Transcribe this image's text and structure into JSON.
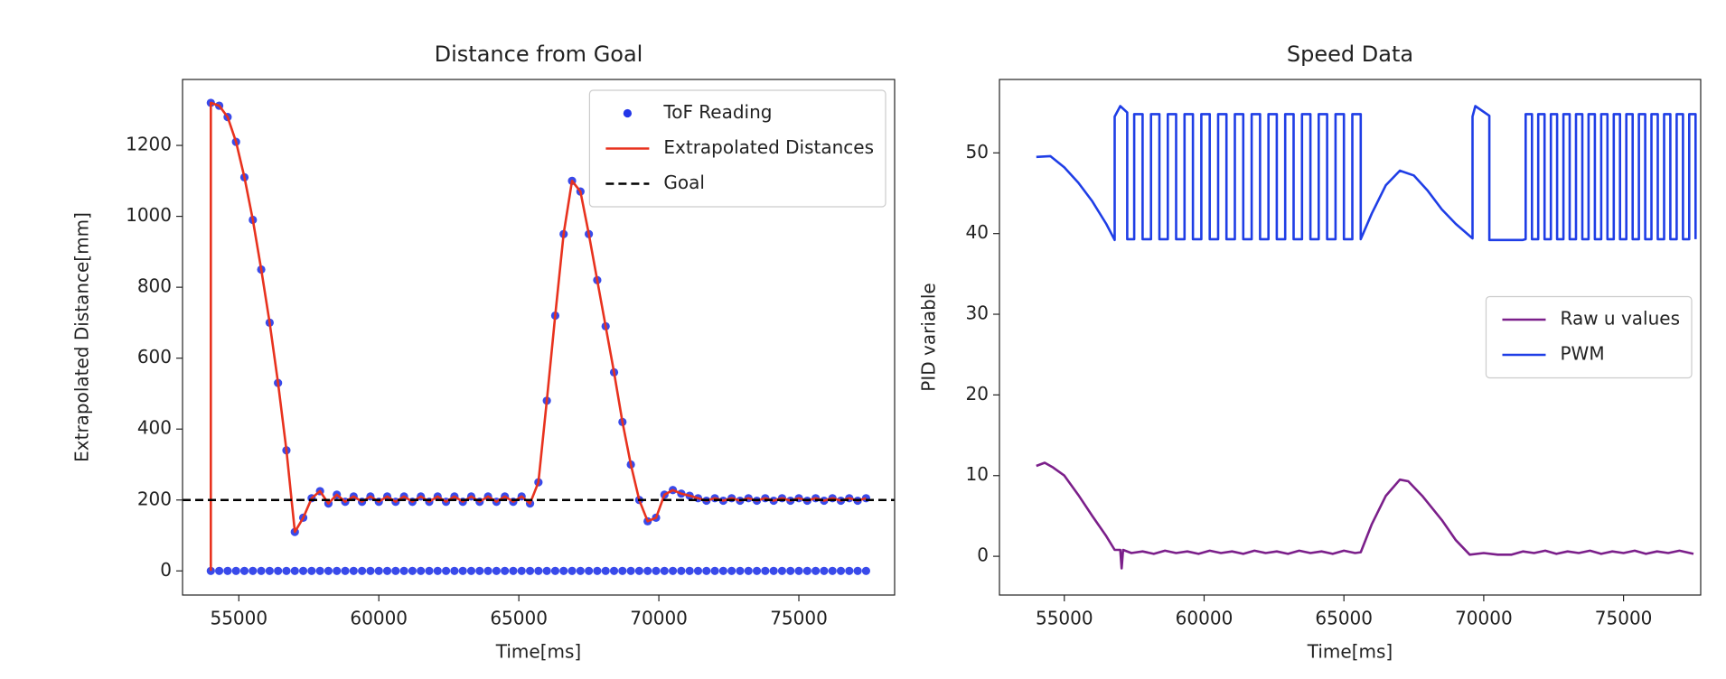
{
  "chart_data": [
    {
      "type": "line",
      "title": "Distance from Goal",
      "xlabel": "Time[ms]",
      "ylabel": "Extrapolated Distance[mm]",
      "xlim": [
        52990,
        78420
      ],
      "ylim": [
        -68,
        1386
      ],
      "xticks": [
        55000,
        60000,
        65000,
        70000,
        75000
      ],
      "yticks": [
        0,
        200,
        400,
        600,
        800,
        1000,
        1200
      ],
      "legend": "upper right",
      "series": [
        {
          "name": "ToF Reading",
          "type": "scatter",
          "color": "#2336e8",
          "x": [
            54000,
            54300,
            54600,
            54900,
            55200,
            55500,
            55800,
            56100,
            56400,
            56700,
            57000,
            57300,
            57600,
            57900,
            58200,
            58500,
            58800,
            59100,
            59400,
            59700,
            60000,
            60300,
            60600,
            60900,
            61200,
            61500,
            61800,
            62100,
            62400,
            62700,
            63000,
            63300,
            63600,
            63900,
            64200,
            64500,
            64800,
            65100,
            65400,
            65700,
            66000,
            66300,
            66600,
            66900,
            67200,
            67500,
            67800,
            68100,
            68400,
            68700,
            69000,
            69300,
            69600,
            69900,
            70200,
            70500,
            70800,
            71100,
            71400,
            71700,
            72000,
            72300,
            72600,
            72900,
            73200,
            73500,
            73800,
            74100,
            74400,
            74700,
            75000,
            75300,
            75600,
            75900,
            76200,
            76500,
            76800,
            77100,
            77400,
            54000,
            54300,
            54600,
            54900,
            55200,
            55500,
            55800,
            56100,
            56400,
            56700,
            57000,
            57300,
            57600,
            57900,
            58200,
            58500,
            58800,
            59100,
            59400,
            59700,
            60000,
            60300,
            60600,
            60900,
            61200,
            61500,
            61800,
            62100,
            62400,
            62700,
            63000,
            63300,
            63600,
            63900,
            64200,
            64500,
            64800,
            65100,
            65400,
            65700,
            66000,
            66300,
            66600,
            66900,
            67200,
            67500,
            67800,
            68100,
            68400,
            68700,
            69000,
            69300,
            69600,
            69900,
            70200,
            70500,
            70800,
            71100,
            71400,
            71700,
            72000,
            72300,
            72600,
            72900,
            73200,
            73500,
            73800,
            74100,
            74400,
            74700,
            75000,
            75300,
            75600,
            75900,
            76200,
            76500,
            76800,
            77100,
            77400
          ],
          "values": [
            1320,
            1312,
            1280,
            1210,
            1110,
            990,
            850,
            700,
            530,
            340,
            110,
            150,
            205,
            225,
            190,
            215,
            195,
            210,
            195,
            210,
            195,
            210,
            195,
            210,
            195,
            210,
            195,
            210,
            195,
            210,
            195,
            210,
            195,
            210,
            195,
            210,
            195,
            210,
            190,
            250,
            480,
            720,
            950,
            1100,
            1070,
            950,
            820,
            690,
            560,
            420,
            300,
            200,
            140,
            150,
            215,
            228,
            218,
            212,
            205,
            198,
            205,
            198,
            205,
            198,
            205,
            198,
            205,
            198,
            205,
            198,
            205,
            198,
            205,
            198,
            205,
            198,
            205,
            198,
            205,
            0,
            0,
            0,
            0,
            0,
            0,
            0,
            0,
            0,
            0,
            0,
            0,
            0,
            0,
            0,
            0,
            0,
            0,
            0,
            0,
            0,
            0,
            0,
            0,
            0,
            0,
            0,
            0,
            0,
            0,
            0,
            0,
            0,
            0,
            0,
            0,
            0,
            0,
            0,
            0,
            0,
            0,
            0,
            0,
            0,
            0,
            0,
            0,
            0,
            0,
            0,
            0,
            0,
            0,
            0,
            0,
            0,
            0,
            0,
            0,
            0,
            0,
            0,
            0,
            0,
            0,
            0,
            0,
            0,
            0,
            0,
            0,
            0,
            0,
            0,
            0,
            0,
            0,
            0
          ]
        },
        {
          "name": "Extrapolated Distances",
          "type": "line",
          "color": "#e8321e",
          "x": [
            54000,
            54000,
            54300,
            54600,
            54900,
            55200,
            55500,
            55800,
            56100,
            56400,
            56700,
            57000,
            57300,
            57600,
            57900,
            58200,
            58500,
            58800,
            59100,
            59400,
            59700,
            60000,
            60300,
            60600,
            60900,
            61200,
            61500,
            61800,
            62100,
            62400,
            62700,
            63000,
            63300,
            63600,
            63900,
            64200,
            64500,
            64800,
            65100,
            65400,
            65700,
            66000,
            66300,
            66600,
            66900,
            67200,
            67500,
            67800,
            68100,
            68400,
            68700,
            69000,
            69300,
            69600,
            69900,
            70200,
            70500,
            70800,
            71100,
            71400,
            71700,
            72000,
            72300,
            72600,
            72900,
            73200,
            73500,
            73800,
            74100,
            74400,
            74700,
            75000,
            75300,
            75600,
            75900,
            76200,
            76500,
            76800,
            77100,
            77400
          ],
          "values": [
            0,
            1320,
            1312,
            1280,
            1210,
            1110,
            990,
            850,
            700,
            530,
            340,
            110,
            150,
            205,
            225,
            190,
            215,
            195,
            210,
            195,
            210,
            195,
            210,
            195,
            210,
            195,
            210,
            195,
            210,
            195,
            210,
            195,
            210,
            195,
            210,
            195,
            210,
            195,
            210,
            190,
            250,
            480,
            720,
            950,
            1100,
            1070,
            950,
            820,
            690,
            560,
            420,
            300,
            200,
            140,
            150,
            215,
            228,
            218,
            212,
            205,
            198,
            205,
            198,
            205,
            198,
            205,
            198,
            205,
            198,
            205,
            198,
            205,
            198,
            205,
            198,
            205,
            198,
            205,
            198,
            205
          ]
        },
        {
          "name": "Goal",
          "type": "hline",
          "color": "#000000",
          "dashed": true,
          "value": 200
        }
      ]
    },
    {
      "type": "line",
      "title": "Speed Data",
      "xlabel": "Time[ms]",
      "ylabel": "PID variable",
      "xlim": [
        52680,
        77760
      ],
      "ylim": [
        -4.8,
        59.1
      ],
      "xticks": [
        55000,
        60000,
        65000,
        70000,
        75000
      ],
      "yticks": [
        0,
        10,
        20,
        30,
        40,
        50
      ],
      "legend": "center right",
      "series": [
        {
          "name": "Raw u values",
          "type": "line",
          "color": "#7b1f8a",
          "x": [
            54000,
            54300,
            54600,
            55000,
            55500,
            56000,
            56500,
            56800,
            57000,
            57050,
            57100,
            57400,
            57800,
            58200,
            58600,
            59000,
            59400,
            59800,
            60200,
            60600,
            61000,
            61400,
            61800,
            62200,
            62600,
            63000,
            63400,
            63800,
            64200,
            64600,
            65000,
            65400,
            65600,
            66000,
            66500,
            67000,
            67300,
            67800,
            68500,
            69000,
            69500,
            70000,
            70500,
            71000,
            71400,
            71800,
            72200,
            72600,
            73000,
            73400,
            73800,
            74200,
            74600,
            75000,
            75400,
            75800,
            76200,
            76600,
            77000,
            77500
          ],
          "values": [
            11.2,
            11.6,
            11.0,
            10.0,
            7.6,
            5.0,
            2.5,
            0.8,
            0.8,
            -1.5,
            0.8,
            0.4,
            0.6,
            0.3,
            0.7,
            0.4,
            0.6,
            0.3,
            0.7,
            0.4,
            0.6,
            0.3,
            0.7,
            0.4,
            0.6,
            0.3,
            0.7,
            0.4,
            0.6,
            0.3,
            0.7,
            0.4,
            0.5,
            4.0,
            7.5,
            9.5,
            9.3,
            7.5,
            4.5,
            2.0,
            0.2,
            0.4,
            0.2,
            0.2,
            0.6,
            0.4,
            0.7,
            0.3,
            0.6,
            0.4,
            0.7,
            0.3,
            0.6,
            0.4,
            0.7,
            0.3,
            0.6,
            0.4,
            0.7,
            0.3
          ]
        },
        {
          "name": "PWM",
          "type": "line",
          "color": "#1f3ee6",
          "x": [
            54000,
            54500,
            55000,
            55500,
            56000,
            56500,
            56800,
            56800,
            57000,
            57250,
            57250,
            57500,
            57500,
            57800,
            57800,
            58100,
            58100,
            58400,
            58400,
            58700,
            58700,
            59000,
            59000,
            59300,
            59300,
            59600,
            59600,
            59900,
            59900,
            60200,
            60200,
            60500,
            60500,
            60800,
            60800,
            61100,
            61100,
            61400,
            61400,
            61700,
            61700,
            62000,
            62000,
            62300,
            62300,
            62600,
            62600,
            62900,
            62900,
            63200,
            63200,
            63500,
            63500,
            63800,
            63800,
            64100,
            64100,
            64400,
            64400,
            64700,
            64700,
            65000,
            65000,
            65300,
            65300,
            65600,
            65600,
            66000,
            66500,
            67000,
            67500,
            68000,
            68500,
            69000,
            69600,
            69600,
            69700,
            70200,
            70200,
            71400,
            71500,
            71500,
            71725,
            71725,
            71950,
            71950,
            72175,
            72175,
            72400,
            72400,
            72625,
            72625,
            72850,
            72850,
            73075,
            73075,
            73300,
            73300,
            73525,
            73525,
            73750,
            73750,
            73975,
            73975,
            74200,
            74200,
            74425,
            74425,
            74650,
            74650,
            74875,
            74875,
            75100,
            75100,
            75325,
            75325,
            75550,
            75550,
            75775,
            75775,
            76000,
            76000,
            76225,
            76225,
            76450,
            76450,
            76675,
            76675,
            76900,
            76900,
            77125,
            77125,
            77350,
            77350,
            77575,
            77575
          ],
          "values": [
            49.5,
            49.6,
            48.2,
            46.3,
            44,
            41.2,
            39.2,
            54.5,
            55.8,
            55,
            39.3,
            39.3,
            54.8,
            54.8,
            39.3,
            39.3,
            54.8,
            54.8,
            39.3,
            39.3,
            54.8,
            54.8,
            39.3,
            39.3,
            54.8,
            54.8,
            39.3,
            39.3,
            54.8,
            54.8,
            39.3,
            39.3,
            54.8,
            54.8,
            39.3,
            39.3,
            54.8,
            54.8,
            39.3,
            39.3,
            54.8,
            54.8,
            39.3,
            39.3,
            54.8,
            54.8,
            39.3,
            39.3,
            54.8,
            54.8,
            39.3,
            39.3,
            54.8,
            54.8,
            39.3,
            39.3,
            54.8,
            54.8,
            39.3,
            39.3,
            54.8,
            54.8,
            39.3,
            39.3,
            54.8,
            54.8,
            39.3,
            42.5,
            46,
            47.8,
            47.2,
            45.3,
            43,
            41.2,
            39.4,
            54.5,
            55.8,
            54.6,
            39.2,
            39.2,
            39.3,
            54.8,
            54.8,
            39.3,
            39.3,
            54.8,
            54.8,
            39.3,
            39.3,
            54.8,
            54.8,
            39.3,
            39.3,
            54.8,
            54.8,
            39.3,
            39.3,
            54.8,
            54.8,
            39.3,
            39.3,
            54.8,
            54.8,
            39.3,
            39.3,
            54.8,
            54.8,
            39.3,
            39.3,
            54.8,
            54.8,
            39.3,
            39.3,
            54.8,
            54.8,
            39.3,
            39.3,
            54.8,
            54.8,
            39.3,
            39.3,
            54.8,
            54.8,
            39.3,
            39.3,
            54.8,
            54.8,
            39.3,
            39.3,
            54.8,
            54.8,
            39.3,
            39.3,
            54.8,
            54.8,
            39.3
          ]
        }
      ]
    }
  ]
}
